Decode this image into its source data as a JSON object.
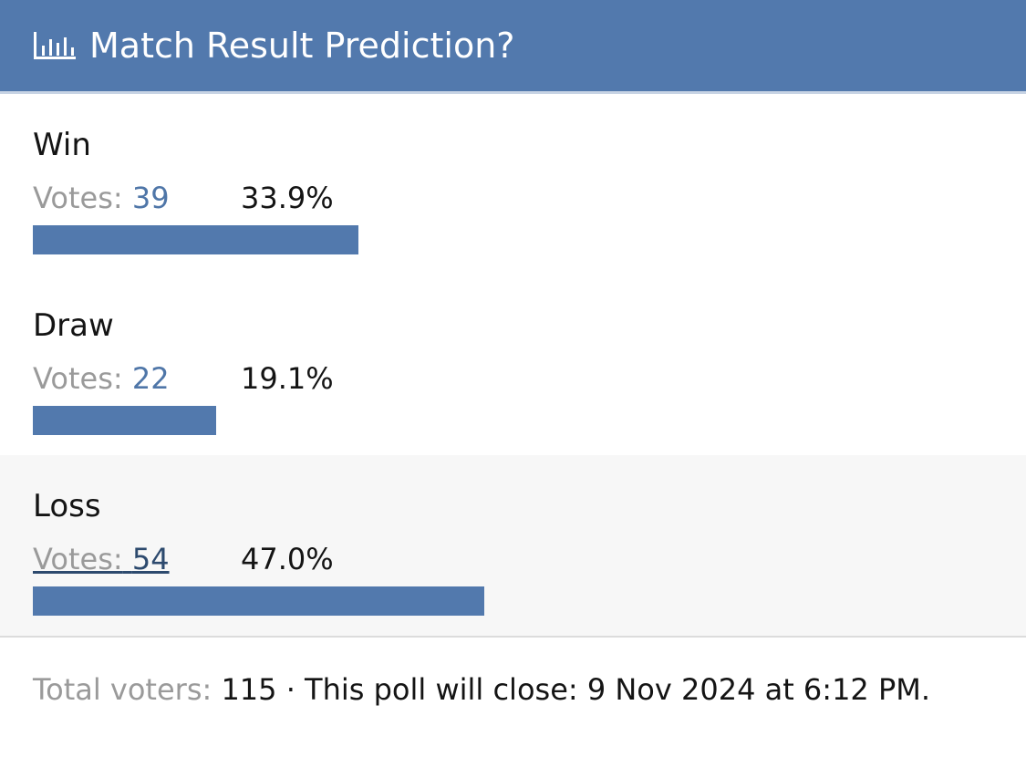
{
  "header": {
    "title": "Match Result Prediction?"
  },
  "options": [
    {
      "label": "Win",
      "votes_label": "Votes:",
      "votes": 39,
      "percent": 33.9,
      "percent_label": "33.9%"
    },
    {
      "label": "Draw",
      "votes_label": "Votes:",
      "votes": 22,
      "percent": 19.1,
      "percent_label": "19.1%"
    },
    {
      "label": "Loss",
      "votes_label": "Votes:",
      "votes": 54,
      "percent": 47.0,
      "percent_label": "47.0%"
    }
  ],
  "footer": {
    "total_label": "Total voters:",
    "total": 115,
    "close_text": "· This poll will close: 9 Nov 2024 at 6:12 PM."
  }
}
